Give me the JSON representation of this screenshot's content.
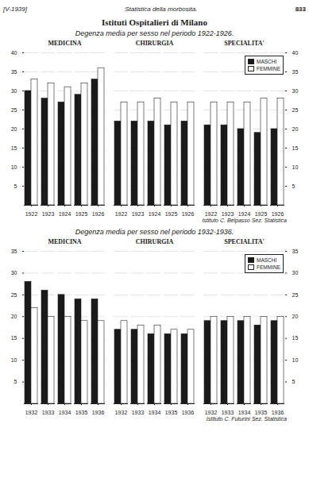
{
  "title": "Istituti Ospitalieri di Milano",
  "annotations": [
    "[V-1939]",
    "Statistica della morbosita.",
    "833"
  ],
  "chart_data": [
    {
      "type": "bar",
      "subtitle": "Degenza media per sesso nel periodo 1922-1926.",
      "title": "MEDICINA",
      "categories": [
        "1922",
        "1923",
        "1924",
        "1925",
        "1926"
      ],
      "series": [
        {
          "name": "MASCHI",
          "color": "#1a1a1a",
          "values": [
            30,
            28,
            27,
            29,
            33
          ]
        },
        {
          "name": "FEMMINE",
          "color": "#ffffff",
          "values": [
            33,
            32,
            31,
            32,
            36
          ]
        }
      ],
      "ylim": [
        0,
        40
      ],
      "yticks": [
        5,
        10,
        15,
        20,
        25,
        30,
        35,
        40
      ],
      "grid": true
    },
    {
      "type": "bar",
      "title": "CHIRURGIA",
      "categories": [
        "1922",
        "1923",
        "1924",
        "1925",
        "1926"
      ],
      "series": [
        {
          "name": "MASCHI",
          "color": "#1a1a1a",
          "values": [
            22,
            22,
            22,
            21,
            22
          ]
        },
        {
          "name": "FEMMINE",
          "color": "#ffffff",
          "values": [
            27,
            27,
            28,
            27,
            27
          ]
        }
      ],
      "ylim": [
        0,
        40
      ],
      "yticks": [
        5,
        10,
        15,
        20,
        25,
        30,
        35,
        40
      ],
      "grid": true,
      "tick_labels": "x"
    },
    {
      "type": "bar",
      "title": "SPECIALITA'",
      "categories": [
        "1922",
        "1923",
        "1924",
        "1925",
        "1926"
      ],
      "series": [
        {
          "name": "MASCHI",
          "color": "#1a1a1a",
          "values": [
            21,
            21,
            20,
            19,
            20
          ]
        },
        {
          "name": "FEMMINE",
          "color": "#ffffff",
          "values": [
            27,
            27,
            27,
            28,
            28
          ]
        }
      ],
      "ylim": [
        0,
        40
      ],
      "yticks": [
        5,
        10,
        15,
        20,
        25,
        30,
        35,
        40
      ],
      "grid": true,
      "legend": "upper right",
      "annotations": [
        "Istituto C. Belpasso Sez. Statistica"
      ]
    },
    {
      "type": "bar",
      "subtitle": "Degenza media per sesso nel periodo 1932-1936.",
      "title": "MEDICINA",
      "categories": [
        "1932",
        "1933",
        "1934",
        "1935",
        "1936"
      ],
      "series": [
        {
          "name": "MASCHI",
          "color": "#1a1a1a",
          "values": [
            28,
            26,
            25,
            24,
            24
          ]
        },
        {
          "name": "FEMMINE",
          "color": "#ffffff",
          "values": [
            22,
            20,
            20,
            19,
            19
          ]
        }
      ],
      "ylim": [
        0,
        35
      ],
      "yticks": [
        5,
        10,
        15,
        20,
        25,
        30,
        35
      ],
      "grid": true
    },
    {
      "type": "bar",
      "title": "CHIRURGIA",
      "categories": [
        "1932",
        "1933",
        "1934",
        "1935",
        "1936"
      ],
      "series": [
        {
          "name": "MASCHI",
          "color": "#1a1a1a",
          "values": [
            17,
            17,
            16,
            16,
            16
          ]
        },
        {
          "name": "FEMMINE",
          "color": "#ffffff",
          "values": [
            19,
            18,
            18,
            17,
            17
          ]
        }
      ],
      "ylim": [
        0,
        35
      ],
      "yticks": [
        5,
        10,
        15,
        20,
        25,
        30,
        35
      ],
      "grid": true,
      "tick_labels": "x"
    },
    {
      "type": "bar",
      "title": "SPECIALITA'",
      "categories": [
        "1932",
        "1933",
        "1934",
        "1935",
        "1936"
      ],
      "series": [
        {
          "name": "MASCHI",
          "color": "#1a1a1a",
          "values": [
            19,
            19,
            19,
            18,
            19
          ]
        },
        {
          "name": "FEMMINE",
          "color": "#ffffff",
          "values": [
            20,
            20,
            20,
            20,
            20
          ]
        }
      ],
      "ylim": [
        0,
        35
      ],
      "yticks": [
        5,
        10,
        15,
        20,
        25,
        30,
        35
      ],
      "grid": true,
      "legend": "upper right",
      "annotations": [
        "Istituto C. Futurini Sez. Statistica"
      ]
    }
  ]
}
